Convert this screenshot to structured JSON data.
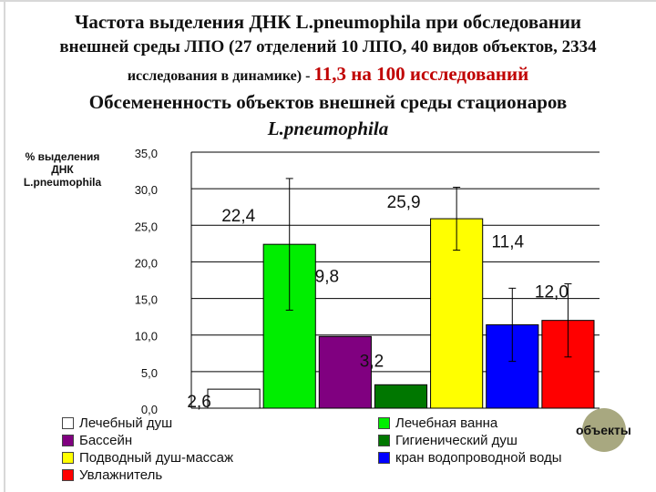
{
  "title": {
    "line1": "Частота выделения ДНК L.pneumophila при обследовании",
    "line2": "внешней среды ЛПО (27 отделений 10 ЛПО, 40 видов объектов, 2334",
    "line3_prefix": "исследования в динамике) - ",
    "line3_highlight": "11,3 на 100 исследований",
    "line4": "Обсемененность объектов внешней среды стационаров",
    "line5": "L.pneumophila"
  },
  "colors": {
    "highlight": "#c00000",
    "badge": "#a8a880"
  },
  "badge_label": "объекты",
  "chart_data": {
    "type": "bar",
    "ylabel": [
      "% выделения",
      "ДНК",
      "L.pneumophila"
    ],
    "ylim": [
      0,
      35
    ],
    "yticks": [
      0,
      5,
      10,
      15,
      20,
      25,
      30,
      35
    ],
    "ytick_labels": [
      "0,0",
      "5,0",
      "10,0",
      "15,0",
      "20,0",
      "25,0",
      "30,0",
      "35,0"
    ],
    "grid": "horizontal",
    "categories": [
      "Лечебный душ",
      "Лечебная ванна",
      "Бассейн",
      "Гигиенический душ",
      "Подводный душ-массаж",
      "кран водопроводной воды",
      "Увлажнитель"
    ],
    "values": [
      2.6,
      22.4,
      9.8,
      3.2,
      25.9,
      11.4,
      12.0
    ],
    "value_labels": [
      "2,6",
      "22,4",
      "9,8",
      "3,2",
      "25,9",
      "11,4",
      "12,0"
    ],
    "errors": [
      0,
      9,
      0,
      0,
      4.3,
      5,
      5
    ],
    "colors": [
      "#ffffff",
      "#00ee00",
      "#800080",
      "#007700",
      "#ffff00",
      "#0000ff",
      "#ff0000"
    ],
    "legend": [
      {
        "label": "Лечебный душ",
        "color": "#ffffff"
      },
      {
        "label": "Лечебная ванна",
        "color": "#00ee00"
      },
      {
        "label": "Бассейн",
        "color": "#800080"
      },
      {
        "label": "Гигиенический душ",
        "color": "#007700"
      },
      {
        "label": "Подводный душ-массаж",
        "color": "#ffff00"
      },
      {
        "label": "кран водопроводной воды",
        "color": "#0000ff"
      },
      {
        "label": "Увлажнитель",
        "color": "#ff0000"
      }
    ],
    "legend_placement": "bottom"
  }
}
